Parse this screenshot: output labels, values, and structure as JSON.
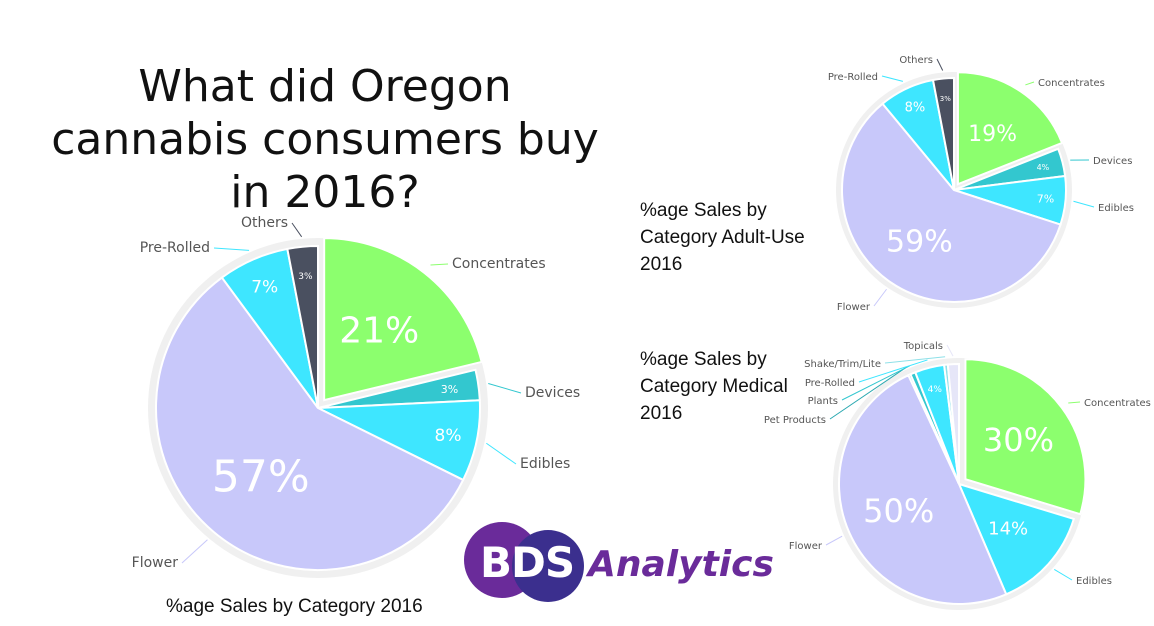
{
  "title": "What did Oregon cannabis consumers buy in 2016?",
  "logo": {
    "mark": "BDS",
    "wordmark": "Analytics",
    "colors": [
      "#6a2b9a",
      "#3b2f8e"
    ]
  },
  "chart_data": [
    {
      "type": "pie",
      "title": "%age Sales by Category 2016",
      "slices": [
        {
          "name": "Concentrates",
          "value": 21,
          "label": "21%",
          "color": "#8cff6e",
          "exploded": true
        },
        {
          "name": "Devices",
          "value": 3,
          "label": "3%",
          "color": "#33c7cf"
        },
        {
          "name": "Edibles",
          "value": 8,
          "label": "8%",
          "color": "#3ee6ff"
        },
        {
          "name": "Flower",
          "value": 57,
          "label": "57%",
          "color": "#c8c8fa"
        },
        {
          "name": "Pre-Rolled",
          "value": 7,
          "label": "7%",
          "color": "#3ee6ff"
        },
        {
          "name": "Others",
          "value": 3,
          "label": "3%",
          "color": "#4a5060"
        }
      ]
    },
    {
      "type": "pie",
      "title": "%age Sales by\nCategory Adult-Use\n2016",
      "slices": [
        {
          "name": "Concentrates",
          "value": 19,
          "label": "19%",
          "color": "#8cff6e",
          "exploded": true
        },
        {
          "name": "Devices",
          "value": 4,
          "label": "4%",
          "color": "#33c7cf"
        },
        {
          "name": "Edibles",
          "value": 7,
          "label": "7%",
          "color": "#3ee6ff"
        },
        {
          "name": "Flower",
          "value": 59,
          "label": "59%",
          "color": "#c8c8fa"
        },
        {
          "name": "Pre-Rolled",
          "value": 8,
          "label": "8%",
          "color": "#3ee6ff"
        },
        {
          "name": "Others",
          "value": 3,
          "label": "3%",
          "color": "#4a5060"
        }
      ]
    },
    {
      "type": "pie",
      "title": "%age Sales by\nCategory Medical\n2016",
      "slices": [
        {
          "name": "Concentrates",
          "value": 30,
          "label": "30%",
          "color": "#8cff6e",
          "exploded": true
        },
        {
          "name": "Edibles",
          "value": 14,
          "label": "14%",
          "color": "#3ee6ff"
        },
        {
          "name": "Flower",
          "value": 50,
          "label": "50%",
          "color": "#c8c8fa"
        },
        {
          "name": "Pet Products",
          "value": 0.3,
          "label": "",
          "color": "#2aa8b0"
        },
        {
          "name": "Plants",
          "value": 0.7,
          "label": "",
          "color": "#33c7cf"
        },
        {
          "name": "Pre-Rolled",
          "value": 4,
          "label": "4%",
          "color": "#3ee6ff"
        },
        {
          "name": "Shake/Trim/Lite",
          "value": 0.5,
          "label": "",
          "color": "#8ee0e8"
        },
        {
          "name": "Topicals",
          "value": 1.5,
          "label": "",
          "color": "#e6e6f8"
        }
      ]
    }
  ]
}
